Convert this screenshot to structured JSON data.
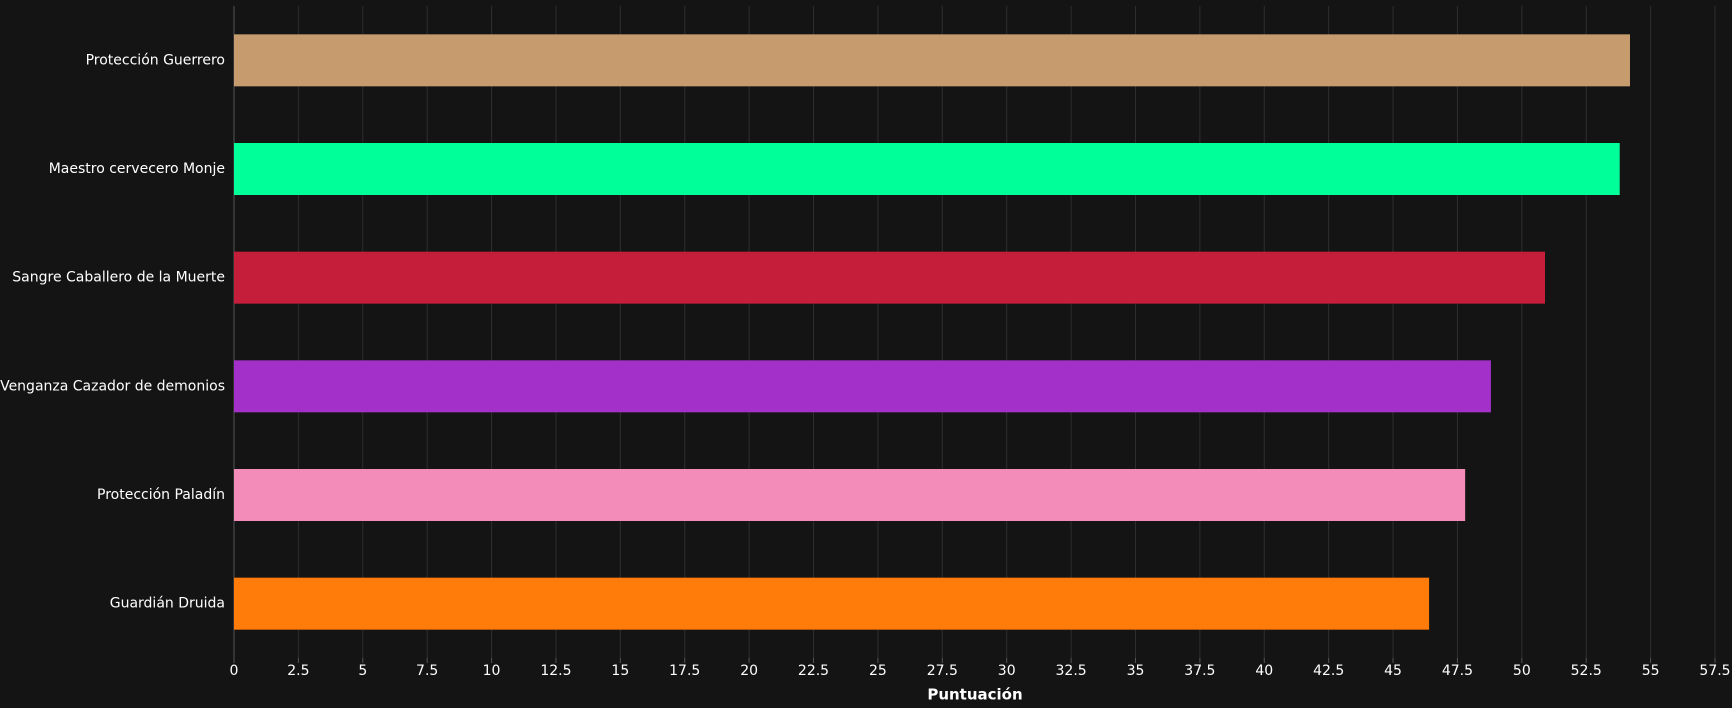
{
  "chart_data": {
    "type": "bar",
    "orientation": "horizontal",
    "x_label": "Puntuación",
    "categories": [
      "Protección Guerrero",
      "Maestro cervecero Monje",
      "Sangre Caballero de la Muerte",
      "Venganza Cazador de demonios",
      "Protección Paladín",
      "Guardián Druida"
    ],
    "values": [
      54.2,
      53.8,
      50.9,
      48.8,
      47.8,
      46.4
    ],
    "colors": [
      "#c69b6d",
      "#00ff98",
      "#c41e3a",
      "#a330c9",
      "#f48cba",
      "#ff7c0a"
    ],
    "xlim": [
      0,
      57.5
    ],
    "xticks": [
      0,
      2.5,
      5,
      7.5,
      10,
      12.5,
      15,
      17.5,
      20,
      22.5,
      25,
      27.5,
      30,
      32.5,
      35,
      37.5,
      40,
      42.5,
      45,
      47.5,
      50,
      52.5,
      55,
      57.5
    ],
    "grid": true
  }
}
